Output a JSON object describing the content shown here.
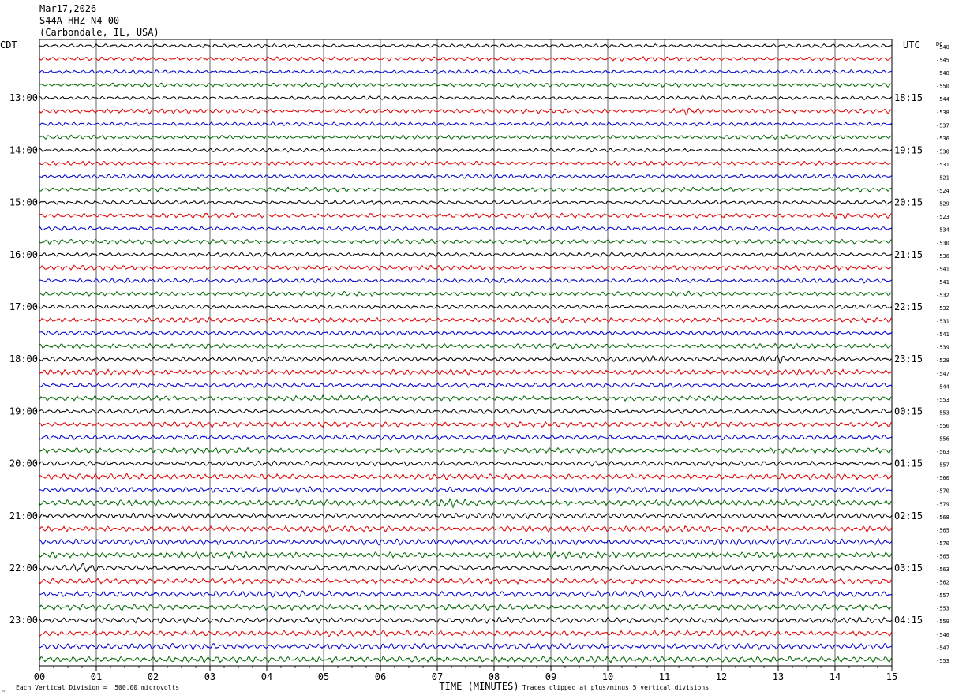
{
  "header": {
    "date": "Mar17,2026",
    "station": "S44A HHZ N4 00",
    "location": "(Carbondale, IL, USA)"
  },
  "axis": {
    "left_label": "CDT",
    "right_label": "UTC",
    "dc_label": "DC",
    "xlabel": "TIME (MINUTES)"
  },
  "footer": {
    "scale_note": "Each Vertical Division =  500.00 microvolts",
    "clip_note": "Traces clipped at plus/minus 5 vertical divisions"
  },
  "colors": {
    "cycle": [
      "#000000",
      "#dd0000",
      "#0000cc",
      "#006600"
    ],
    "grid": "#000000"
  },
  "chart_data": {
    "type": "line",
    "title": "S44A HHZ N4 00",
    "xlabel": "TIME (MINUTES)",
    "xlim": [
      0,
      15
    ],
    "x_ticks": [
      "00",
      "01",
      "02",
      "03",
      "04",
      "05",
      "06",
      "07",
      "08",
      "09",
      "10",
      "11",
      "12",
      "13",
      "14",
      "15"
    ],
    "grid": true,
    "trace_count": 48,
    "traces_per_hour": 4,
    "left_hour_labels": [
      "13:00",
      "14:00",
      "15:00",
      "16:00",
      "17:00",
      "18:00",
      "19:00",
      "20:00",
      "21:00",
      "22:00",
      "23:00"
    ],
    "right_hour_labels": [
      "18:15",
      "19:15",
      "20:15",
      "21:15",
      "22:15",
      "23:15",
      "00:15",
      "01:15",
      "02:15",
      "03:15",
      "04:15"
    ],
    "dc_offsets": [
      "-540",
      "-545",
      "-548",
      "-550",
      "-544",
      "-538",
      "-537",
      "-536",
      "-530",
      "-531",
      "-521",
      "-524",
      "-529",
      "-523",
      "-534",
      "-530",
      "-536",
      "-541",
      "-541",
      "-532",
      "-532",
      "-531",
      "-541",
      "-539",
      "-528",
      "-547",
      "-544",
      "-553",
      "-553",
      "-556",
      "-556",
      "-563",
      "-557",
      "-560",
      "-570",
      "-579",
      "-568",
      "-565",
      "-570",
      "-565",
      "-563",
      "-562",
      "-557",
      "-553",
      "-559",
      "-546",
      "-547",
      "-553"
    ],
    "amplitude_divisions": [
      2.2,
      2.4,
      2.2,
      2.5,
      2.2,
      2.6,
      2.3,
      2.4,
      2.3,
      2.5,
      2.4,
      2.6,
      2.4,
      2.8,
      2.5,
      2.7,
      2.5,
      2.8,
      2.6,
      2.7,
      2.6,
      3.0,
      2.7,
      2.9,
      2.8,
      3.1,
      2.8,
      3.1,
      2.8,
      3.2,
      3.0,
      3.2,
      3.0,
      3.4,
      3.2,
      3.6,
      3.3,
      3.5,
      3.6,
      3.6,
      3.4,
      3.4,
      3.6,
      3.6,
      3.5,
      3.4,
      3.6,
      3.8
    ],
    "events": [
      {
        "trace": 5,
        "minute": 11.4,
        "factor": 2.0
      },
      {
        "trace": 13,
        "minute": 14.0,
        "factor": 1.6
      },
      {
        "trace": 24,
        "minute": 10.8,
        "factor": 1.8
      },
      {
        "trace": 35,
        "minute": 7.2,
        "factor": 1.7
      },
      {
        "trace": 24,
        "minute": 12.9,
        "factor": 2.4
      },
      {
        "trace": 40,
        "minute": 0.8,
        "factor": 2.2
      }
    ],
    "scale_microvolts_per_division": 500.0,
    "clip_divisions": 5
  }
}
